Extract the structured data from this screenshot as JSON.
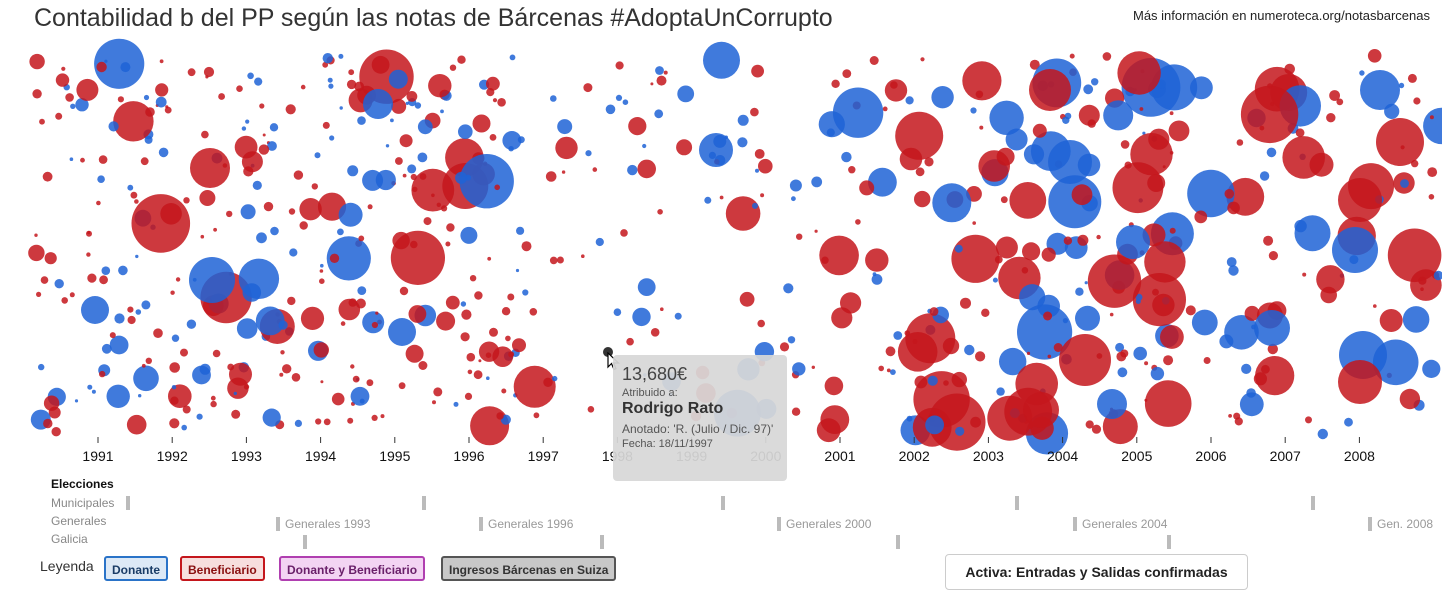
{
  "title": "Contabilidad b del PP según las notas de Bárcenas #AdoptaUnCorrupto",
  "more_info": "Más información en numeroteca.org/notasbarcenas",
  "colors": {
    "donante": "#1f63d6",
    "beneficiario": "#c4161c",
    "hover": "#333333"
  },
  "chart_data": {
    "type": "scatter",
    "xlabel": "",
    "ylabel": "",
    "xlim": [
      1990.5,
      1999.0
    ],
    "x_ticks": [
      "1991",
      "1992",
      "1993",
      "1994",
      "1995",
      "1996",
      "1997",
      "1998",
      "1999",
      "2000",
      "2001",
      "2002",
      "2003",
      "2004",
      "2005",
      "2006",
      "2007",
      "2008"
    ],
    "series": [
      {
        "name": "Donante",
        "color": "#1f63d6"
      },
      {
        "name": "Beneficiario",
        "color": "#c4161c"
      }
    ],
    "highlighted_point": {
      "amount": "13,680€",
      "recipient": "Rodrigo Rato",
      "date": "18/11/1997"
    }
  },
  "tooltip": {
    "amount": "13,680€",
    "attributed_label": "Atribuido a:",
    "name": "Rodrigo Rato",
    "note": "Anotado: 'R. (Julio / Dic. 97)'",
    "date": "Fecha: 18/11/1997"
  },
  "elections": {
    "title": "Elecciones",
    "rows": [
      "Municipales",
      "Generales",
      "Galicia"
    ],
    "labels": [
      "Generales 1993",
      "Generales 1996",
      "Generales 2000",
      "Generales 2004",
      "Gen. 2008"
    ]
  },
  "legend": {
    "label": "Leyenda",
    "items": [
      {
        "label": "Donante",
        "bg": "#dde9f6",
        "border": "#2a73c8"
      },
      {
        "label": "Beneficiario",
        "bg": "#f7dedd",
        "border": "#c4161c"
      },
      {
        "label": "Donante y Beneficiario",
        "bg": "#f3d4f3",
        "border": "#b03fb0"
      },
      {
        "label": "Ingresos Bárcenas en Suiza",
        "bg": "#c8c8c8",
        "border": "#555555"
      }
    ]
  },
  "active_button": "Activa: Entradas y Salidas confirmadas"
}
